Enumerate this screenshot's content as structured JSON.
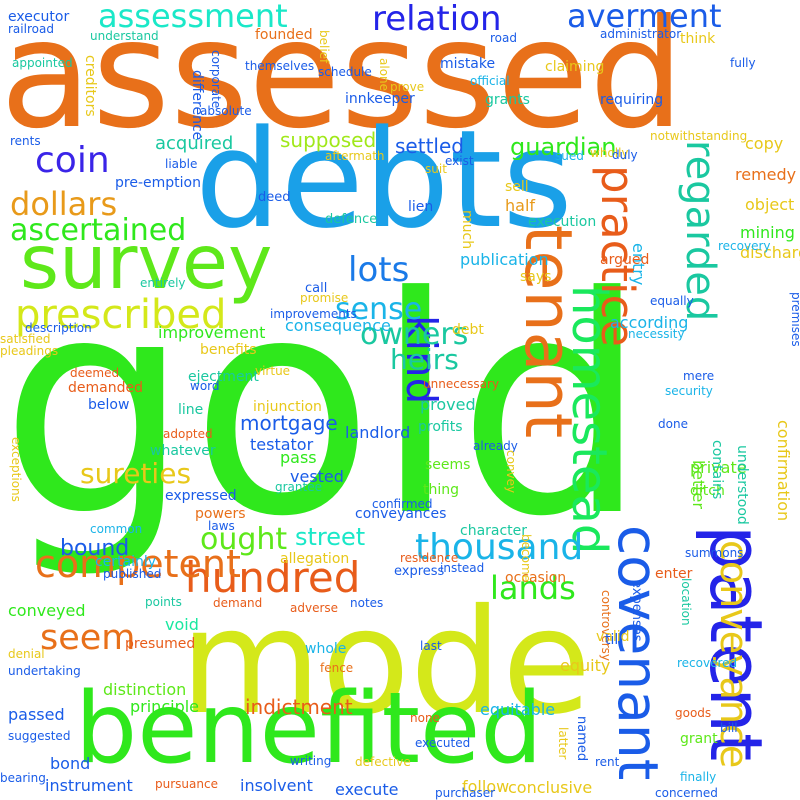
{
  "words": [
    {
      "text": "gold",
      "color": "#2fe81c",
      "vertical": false
    },
    {
      "text": "assessed",
      "color": "#e8701a",
      "vertical": false
    },
    {
      "text": "debts",
      "color": "#1aa0e8",
      "vertical": false
    },
    {
      "text": "mode",
      "color": "#d4e81a",
      "vertical": false
    },
    {
      "text": "benefited",
      "color": "#2fe81c",
      "vertical": false
    },
    {
      "text": "survey",
      "color": "#5ee81a",
      "vertical": false
    },
    {
      "text": "patent",
      "color": "#2424e8",
      "vertical": true
    },
    {
      "text": "tenant",
      "color": "#e8701a",
      "vertical": true
    },
    {
      "text": "covenant",
      "color": "#1a5ce8",
      "vertical": true
    },
    {
      "text": "homestead",
      "color": "#1ae85c",
      "vertical": true
    },
    {
      "text": "practice",
      "color": "#e85c1a",
      "vertical": true
    },
    {
      "text": "regarded",
      "color": "#1ac8a0",
      "vertical": true
    },
    {
      "text": "conveyance",
      "color": "#e8c81a",
      "vertical": true
    },
    {
      "text": "kind",
      "color": "#2424e8",
      "vertical": true
    },
    {
      "text": "hundred",
      "color": "#e85c1a",
      "vertical": false
    },
    {
      "text": "thousand",
      "color": "#1ab4e8",
      "vertical": false
    },
    {
      "text": "prescribed",
      "color": "#d4e81a",
      "vertical": false
    },
    {
      "text": "competent",
      "color": "#e8701a",
      "vertical": false
    },
    {
      "text": "seem",
      "color": "#e8701a",
      "vertical": false
    },
    {
      "text": "lands",
      "color": "#2fe81c",
      "vertical": false
    },
    {
      "text": "coin",
      "color": "#3a24e8",
      "vertical": false
    },
    {
      "text": "dollars",
      "color": "#e89a1a",
      "vertical": false
    },
    {
      "text": "ascertained",
      "color": "#2fe81c",
      "vertical": false
    },
    {
      "text": "assessment",
      "color": "#1ae8c8",
      "vertical": false
    },
    {
      "text": "relation",
      "color": "#2424e8",
      "vertical": false
    },
    {
      "text": "averment",
      "color": "#1a5ce8",
      "vertical": false
    },
    {
      "text": "lots",
      "color": "#1a7ae8",
      "vertical": false
    },
    {
      "text": "sense",
      "color": "#1ab4e8",
      "vertical": false
    },
    {
      "text": "owners",
      "color": "#1ac8a0",
      "vertical": false
    },
    {
      "text": "heirs",
      "color": "#1ac8a0",
      "vertical": false
    },
    {
      "text": "sureties",
      "color": "#e8c81a",
      "vertical": false
    },
    {
      "text": "ought",
      "color": "#5ee81a",
      "vertical": false
    },
    {
      "text": "street",
      "color": "#1ae8c8",
      "vertical": false
    },
    {
      "text": "guardian",
      "color": "#2fe81c",
      "vertical": false
    },
    {
      "text": "settled",
      "color": "#1a5ce8",
      "vertical": false
    },
    {
      "text": "supposed",
      "color": "#a0e81a",
      "vertical": false
    },
    {
      "text": "acquired",
      "color": "#1ac8a0",
      "vertical": false
    },
    {
      "text": "mortgage",
      "color": "#1a5ce8",
      "vertical": false
    },
    {
      "text": "bound",
      "color": "#1a5ce8",
      "vertical": false
    },
    {
      "text": "indictment",
      "color": "#e85c1a",
      "vertical": false
    },
    {
      "text": "passed",
      "color": "#1a5ce8",
      "vertical": false
    },
    {
      "text": "principle",
      "color": "#2fe81c",
      "vertical": false
    },
    {
      "text": "void",
      "color": "#1ae8a0",
      "vertical": false
    },
    {
      "text": "conveyed",
      "color": "#2fe81c",
      "vertical": false
    },
    {
      "text": "equity",
      "color": "#e8c81a",
      "vertical": false
    },
    {
      "text": "equitable",
      "color": "#1ab4e8",
      "vertical": false
    },
    {
      "text": "follow",
      "color": "#e8c81a",
      "vertical": false
    },
    {
      "text": "insolvent",
      "color": "#1a5ce8",
      "vertical": false
    },
    {
      "text": "instrument",
      "color": "#1a5ce8",
      "vertical": false
    },
    {
      "text": "execute",
      "color": "#1a5ce8",
      "vertical": false
    },
    {
      "text": "conclusive",
      "color": "#e8c81a",
      "vertical": false
    },
    {
      "text": "bond",
      "color": "#1a5ce8",
      "vertical": false
    },
    {
      "text": "pass",
      "color": "#2fe81c",
      "vertical": false
    },
    {
      "text": "publication",
      "color": "#1ab4e8",
      "vertical": false
    },
    {
      "text": "half",
      "color": "#e89a1a",
      "vertical": false
    },
    {
      "text": "remedy",
      "color": "#e8701a",
      "vertical": false
    },
    {
      "text": "copy",
      "color": "#e8c81a",
      "vertical": false
    },
    {
      "text": "object",
      "color": "#e8c81a",
      "vertical": false
    },
    {
      "text": "mining",
      "color": "#2fe81c",
      "vertical": false
    },
    {
      "text": "discharge",
      "color": "#e8c81a",
      "vertical": false
    },
    {
      "text": "confirmation",
      "color": "#e8c81a",
      "vertical": true
    },
    {
      "text": "improvement",
      "color": "#2fe81c",
      "vertical": false
    },
    {
      "text": "description",
      "color": "#1a5ce8",
      "vertical": false
    },
    {
      "text": "presumed",
      "color": "#e85c1a",
      "vertical": false
    },
    {
      "text": "distinction",
      "color": "#5ee81a",
      "vertical": false
    },
    {
      "text": "suggested",
      "color": "#1a5ce8",
      "vertical": false
    },
    {
      "text": "proved",
      "color": "#1ac8a0",
      "vertical": false
    },
    {
      "text": "private",
      "color": "#5ee81a",
      "vertical": false
    },
    {
      "text": "better",
      "color": "#5ee81a",
      "vertical": true
    },
    {
      "text": "ditch",
      "color": "#5ee81a",
      "vertical": false
    },
    {
      "text": "testator",
      "color": "#1a5ce8",
      "vertical": false
    },
    {
      "text": "vested",
      "color": "#1a5ce8",
      "vertical": false
    },
    {
      "text": "landlord",
      "color": "#1a5ce8",
      "vertical": false
    },
    {
      "text": "consequence",
      "color": "#1ab4e8",
      "vertical": false
    },
    {
      "text": "according",
      "color": "#1ab4e8",
      "vertical": false
    },
    {
      "text": "entry",
      "color": "#1ab4e8",
      "vertical": true
    },
    {
      "text": "railroad",
      "color": "#1a5ce8",
      "vertical": false
    },
    {
      "text": "executor",
      "color": "#1a5ce8",
      "vertical": false
    },
    {
      "text": "difference",
      "color": "#1a5ce8",
      "vertical": true
    },
    {
      "text": "creditors",
      "color": "#e8c81a",
      "vertical": true
    },
    {
      "text": "mistake",
      "color": "#1a5ce8",
      "vertical": false
    },
    {
      "text": "claiming",
      "color": "#e8c81a",
      "vertical": false
    },
    {
      "text": "innkeeper",
      "color": "#1a5ce8",
      "vertical": false
    },
    {
      "text": "grants",
      "color": "#1ac8a0",
      "vertical": false
    },
    {
      "text": "requiring",
      "color": "#1a5ce8",
      "vertical": false
    },
    {
      "text": "pre-emption",
      "color": "#1a5ce8",
      "vertical": false
    },
    {
      "text": "occasion",
      "color": "#e8701a",
      "vertical": false
    },
    {
      "text": "seems",
      "color": "#5ee81a",
      "vertical": false
    },
    {
      "text": "thing",
      "color": "#5ee81a",
      "vertical": false
    },
    {
      "text": "allegation",
      "color": "#e8c81a",
      "vertical": false
    },
    {
      "text": "conveyances",
      "color": "#1a5ce8",
      "vertical": false
    },
    {
      "text": "character",
      "color": "#1ac8a0",
      "vertical": false
    },
    {
      "text": "whole",
      "color": "#1ab4e8",
      "vertical": false
    },
    {
      "text": "certainly",
      "color": "#1ab4e8",
      "vertical": false
    },
    {
      "text": "whatever",
      "color": "#1ac8a0",
      "vertical": false
    },
    {
      "text": "line",
      "color": "#1ac8a0",
      "vertical": false
    },
    {
      "text": "injunction",
      "color": "#e8c81a",
      "vertical": false
    },
    {
      "text": "below",
      "color": "#1a5ce8",
      "vertical": false
    },
    {
      "text": "ejectment",
      "color": "#1ac8a0",
      "vertical": false
    },
    {
      "text": "demanded",
      "color": "#e85c1a",
      "vertical": false
    },
    {
      "text": "benefits",
      "color": "#e8c81a",
      "vertical": false
    },
    {
      "text": "profits",
      "color": "#1ac8a0",
      "vertical": false
    },
    {
      "text": "expressed",
      "color": "#1a5ce8",
      "vertical": false
    },
    {
      "text": "powers",
      "color": "#e8701a",
      "vertical": false
    },
    {
      "text": "exceptions",
      "color": "#e8c81a",
      "vertical": true
    },
    {
      "text": "expenses",
      "color": "#1a5ce8",
      "vertical": true
    },
    {
      "text": "location",
      "color": "#1ac8a0",
      "vertical": true
    },
    {
      "text": "controversy",
      "color": "#e8701a",
      "vertical": true
    },
    {
      "text": "grant",
      "color": "#5ee81a",
      "vertical": false
    },
    {
      "text": "finally",
      "color": "#1ab4e8",
      "vertical": false
    },
    {
      "text": "execution",
      "color": "#1ac8a0",
      "vertical": false
    },
    {
      "text": "sell",
      "color": "#e8c81a",
      "vertical": false
    },
    {
      "text": "argued",
      "color": "#e85c1a",
      "vertical": false
    },
    {
      "text": "says",
      "color": "#e8c81a",
      "vertical": false
    },
    {
      "text": "debt",
      "color": "#e8c81a",
      "vertical": false
    },
    {
      "text": "much",
      "color": "#e8c81a",
      "vertical": true
    },
    {
      "text": "express",
      "color": "#1a5ce8",
      "vertical": false
    },
    {
      "text": "valid",
      "color": "#e8c81a",
      "vertical": false
    },
    {
      "text": "till",
      "color": "#1a5ce8",
      "vertical": false
    },
    {
      "text": "enter",
      "color": "#e85c1a",
      "vertical": false
    },
    {
      "text": "named",
      "color": "#1a5ce8",
      "vertical": true
    },
    {
      "text": "contains",
      "color": "#1ac8a0",
      "vertical": true
    },
    {
      "text": "understood",
      "color": "#1ac8a0",
      "vertical": true
    },
    {
      "text": "call",
      "color": "#1a5ce8",
      "vertical": false
    },
    {
      "text": "defence",
      "color": "#1ac8a0",
      "vertical": false
    },
    {
      "text": "lien",
      "color": "#1a5ce8",
      "vertical": false
    },
    {
      "text": "deed",
      "color": "#1a5ce8",
      "vertical": false
    },
    {
      "text": "suit",
      "color": "#e8c81a",
      "vertical": false
    },
    {
      "text": "exist",
      "color": "#1a5ce8",
      "vertical": false
    },
    {
      "text": "sued",
      "color": "#1ab4e8",
      "vertical": false
    },
    {
      "text": "wholly",
      "color": "#e8c81a",
      "vertical": false
    },
    {
      "text": "duly",
      "color": "#1a5ce8",
      "vertical": false
    },
    {
      "text": "rents",
      "color": "#1a5ce8",
      "vertical": false
    },
    {
      "text": "liable",
      "color": "#1a5ce8",
      "vertical": false
    },
    {
      "text": "aftermath",
      "color": "#e8c81a",
      "vertical": false
    },
    {
      "text": "appointed",
      "color": "#1ac8a0",
      "vertical": false
    },
    {
      "text": "absolute",
      "color": "#1a5ce8",
      "vertical": false
    },
    {
      "text": "corporate",
      "color": "#1a5ce8",
      "vertical": true
    },
    {
      "text": "themselves",
      "color": "#1a5ce8",
      "vertical": false
    },
    {
      "text": "schedule",
      "color": "#1a5ce8",
      "vertical": false
    },
    {
      "text": "prove",
      "color": "#e8c81a",
      "vertical": false
    },
    {
      "text": "official",
      "color": "#1ab4e8",
      "vertical": false
    },
    {
      "text": "alone",
      "color": "#e8c81a",
      "vertical": true
    },
    {
      "text": "founded",
      "color": "#e8701a",
      "vertical": false
    },
    {
      "text": "understand",
      "color": "#1ac8a0",
      "vertical": false
    },
    {
      "text": "belief",
      "color": "#e8c81a",
      "vertical": true
    },
    {
      "text": "road",
      "color": "#1a5ce8",
      "vertical": false
    },
    {
      "text": "administrator",
      "color": "#1a5ce8",
      "vertical": false
    },
    {
      "text": "think",
      "color": "#e8c81a",
      "vertical": false
    },
    {
      "text": "fully",
      "color": "#1a5ce8",
      "vertical": false
    },
    {
      "text": "notwithstanding",
      "color": "#e8c81a",
      "vertical": false
    },
    {
      "text": "recovery",
      "color": "#1ab4e8",
      "vertical": false
    },
    {
      "text": "entirely",
      "color": "#1ac8a0",
      "vertical": false
    },
    {
      "text": "promise",
      "color": "#e8c81a",
      "vertical": false
    },
    {
      "text": "improvements",
      "color": "#1a5ce8",
      "vertical": false
    },
    {
      "text": "equally",
      "color": "#1a5ce8",
      "vertical": false
    },
    {
      "text": "necessity",
      "color": "#1ab4e8",
      "vertical": false
    },
    {
      "text": "premises",
      "color": "#1a5ce8",
      "vertical": true
    },
    {
      "text": "satisfied",
      "color": "#e8c81a",
      "vertical": false
    },
    {
      "text": "pleadings",
      "color": "#e8c81a",
      "vertical": false
    },
    {
      "text": "deemed",
      "color": "#e85c1a",
      "vertical": false
    },
    {
      "text": "word",
      "color": "#1a5ce8",
      "vertical": false
    },
    {
      "text": "virtue",
      "color": "#e8c81a",
      "vertical": false
    },
    {
      "text": "unnecessary",
      "color": "#e85c1a",
      "vertical": false
    },
    {
      "text": "mere",
      "color": "#1a5ce8",
      "vertical": false
    },
    {
      "text": "security",
      "color": "#1ab4e8",
      "vertical": false
    },
    {
      "text": "done",
      "color": "#1a5ce8",
      "vertical": false
    },
    {
      "text": "already",
      "color": "#1a5ce8",
      "vertical": false
    },
    {
      "text": "adopted",
      "color": "#e85c1a",
      "vertical": false
    },
    {
      "text": "convey",
      "color": "#e8c81a",
      "vertical": true
    },
    {
      "text": "grantee",
      "color": "#1ac8a0",
      "vertical": false
    },
    {
      "text": "confirmed",
      "color": "#1a5ce8",
      "vertical": false
    },
    {
      "text": "laws",
      "color": "#1a5ce8",
      "vertical": false
    },
    {
      "text": "common",
      "color": "#1ab4e8",
      "vertical": false
    },
    {
      "text": "become",
      "color": "#e8c81a",
      "vertical": true
    },
    {
      "text": "published",
      "color": "#1a5ce8",
      "vertical": false
    },
    {
      "text": "instead",
      "color": "#1a5ce8",
      "vertical": false
    },
    {
      "text": "residence",
      "color": "#e85c1a",
      "vertical": false
    },
    {
      "text": "recovered",
      "color": "#1ab4e8",
      "vertical": false
    },
    {
      "text": "summons",
      "color": "#1a5ce8",
      "vertical": false
    },
    {
      "text": "points",
      "color": "#1ac8a0",
      "vertical": false
    },
    {
      "text": "demand",
      "color": "#e85c1a",
      "vertical": false
    },
    {
      "text": "adverse",
      "color": "#e85c1a",
      "vertical": false
    },
    {
      "text": "notes",
      "color": "#1a5ce8",
      "vertical": false
    },
    {
      "text": "fence",
      "color": "#e8701a",
      "vertical": false
    },
    {
      "text": "last",
      "color": "#1a5ce8",
      "vertical": false
    },
    {
      "text": "denial",
      "color": "#e8c81a",
      "vertical": false
    },
    {
      "text": "undertaking",
      "color": "#1a5ce8",
      "vertical": false
    },
    {
      "text": "none",
      "color": "#e85c1a",
      "vertical": false
    },
    {
      "text": "goods",
      "color": "#e85c1a",
      "vertical": false
    },
    {
      "text": "bill",
      "color": "#1a5ce8",
      "vertical": false
    },
    {
      "text": "latter",
      "color": "#e8c81a",
      "vertical": true
    },
    {
      "text": "executed",
      "color": "#1a5ce8",
      "vertical": false
    },
    {
      "text": "writing",
      "color": "#1a5ce8",
      "vertical": false
    },
    {
      "text": "defective",
      "color": "#e8c81a",
      "vertical": false
    },
    {
      "text": "rent",
      "color": "#1a5ce8",
      "vertical": false
    },
    {
      "text": "bearing",
      "color": "#1a5ce8",
      "vertical": false
    },
    {
      "text": "pursuance",
      "color": "#e85c1a",
      "vertical": false
    },
    {
      "text": "purchaser",
      "color": "#1a5ce8",
      "vertical": false
    },
    {
      "text": "concerned",
      "color": "#1a5ce8",
      "vertical": false
    }
  ]
}
